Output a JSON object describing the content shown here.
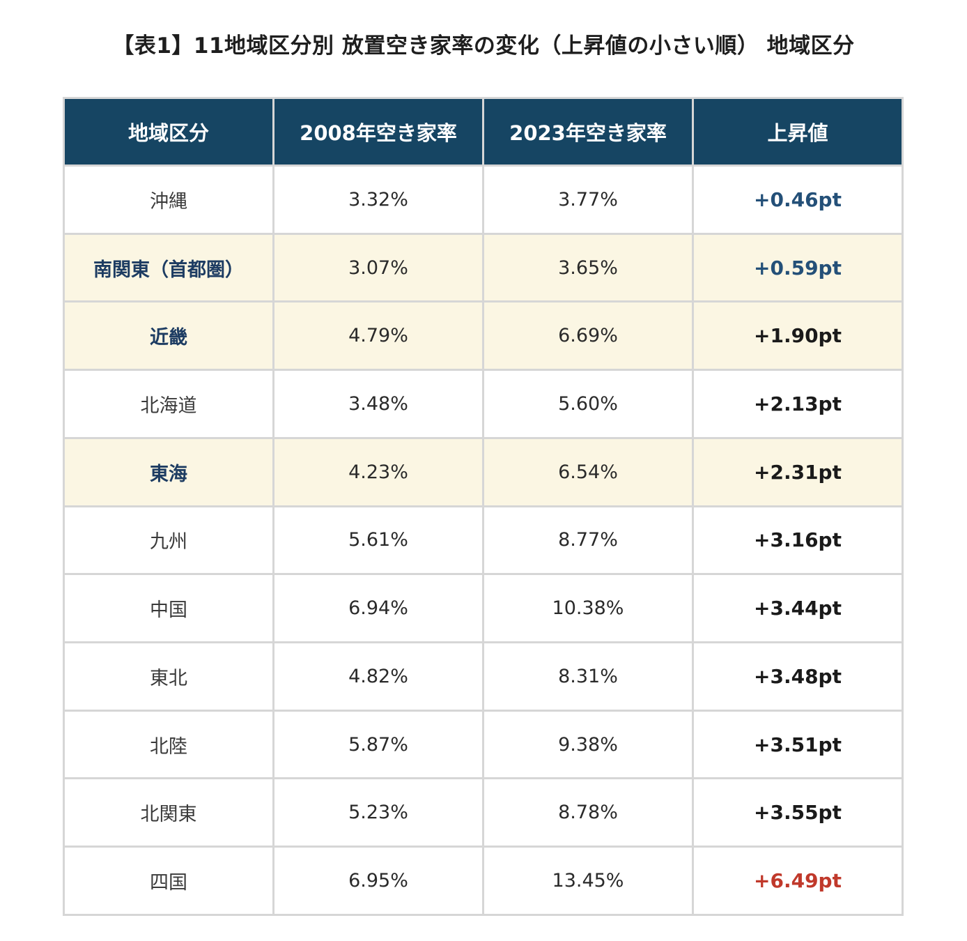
{
  "title": "【表1】11地域区分別 放置空き家率の変化（上昇値の小さい順） 地域区分",
  "table": {
    "headers": [
      "地域区分",
      "2008年空き家率",
      "2023年空き家率",
      "上昇値"
    ],
    "rows": [
      {
        "region": "沖縄",
        "rate2008": "3.32%",
        "rate2023": "3.77%",
        "rise": "+0.46pt",
        "highlight": false,
        "rise_style": "low"
      },
      {
        "region": "南関東（首都圏）",
        "rate2008": "3.07%",
        "rate2023": "3.65%",
        "rise": "+0.59pt",
        "highlight": true,
        "rise_style": "low"
      },
      {
        "region": "近畿",
        "rate2008": "4.79%",
        "rate2023": "6.69%",
        "rise": "+1.90pt",
        "highlight": true,
        "rise_style": "normal"
      },
      {
        "region": "北海道",
        "rate2008": "3.48%",
        "rate2023": "5.60%",
        "rise": "+2.13pt",
        "highlight": false,
        "rise_style": "normal"
      },
      {
        "region": "東海",
        "rate2008": "4.23%",
        "rate2023": "6.54%",
        "rise": "+2.31pt",
        "highlight": true,
        "rise_style": "normal"
      },
      {
        "region": "九州",
        "rate2008": "5.61%",
        "rate2023": "8.77%",
        "rise": "+3.16pt",
        "highlight": false,
        "rise_style": "normal"
      },
      {
        "region": "中国",
        "rate2008": "6.94%",
        "rate2023": "10.38%",
        "rise": "+3.44pt",
        "highlight": false,
        "rise_style": "normal"
      },
      {
        "region": "東北",
        "rate2008": "4.82%",
        "rate2023": "8.31%",
        "rise": "+3.48pt",
        "highlight": false,
        "rise_style": "normal"
      },
      {
        "region": "北陸",
        "rate2008": "5.87%",
        "rate2023": "9.38%",
        "rise": "+3.51pt",
        "highlight": false,
        "rise_style": "normal"
      },
      {
        "region": "北関東",
        "rate2008": "5.23%",
        "rate2023": "8.78%",
        "rise": "+3.55pt",
        "highlight": false,
        "rise_style": "normal"
      },
      {
        "region": "四国",
        "rate2008": "6.95%",
        "rate2023": "13.45%",
        "rise": "+6.49pt",
        "highlight": false,
        "rise_style": "high"
      }
    ]
  },
  "colors": {
    "header_bg": "#164563",
    "highlight_row_bg": "#fbf6e3",
    "low_rise_text": "#245078",
    "high_rise_text": "#c0392b"
  }
}
